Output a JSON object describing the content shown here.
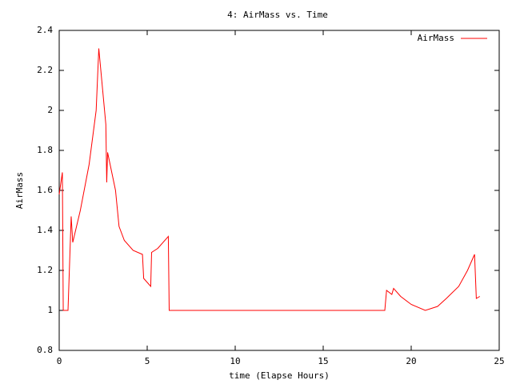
{
  "chart_data": {
    "type": "line",
    "title": "4: AirMass vs. Time",
    "x_label": "time (Elapse Hours)",
    "y_label": "AirMass",
    "x": [
      0,
      0.18,
      0.23,
      0.5,
      0.68,
      0.77,
      1.2,
      1.7,
      2.1,
      2.25,
      2.65,
      2.7,
      2.75,
      3.2,
      3.4,
      3.7,
      4.2,
      4.73,
      4.8,
      5.2,
      5.25,
      5.6,
      6.2,
      6.25,
      18.5,
      18.6,
      18.9,
      19.0,
      19.4,
      20.0,
      20.8,
      21.5,
      22.0,
      22.7,
      23.2,
      23.6,
      23.7,
      23.9
    ],
    "series": [
      {
        "name": "AirMass",
        "color": "#ff0000",
        "values": [
          1.58,
          1.69,
          1.0,
          1.0,
          1.47,
          1.34,
          1.5,
          1.73,
          2.0,
          2.31,
          1.93,
          1.64,
          1.79,
          1.6,
          1.42,
          1.35,
          1.3,
          1.28,
          1.16,
          1.12,
          1.29,
          1.31,
          1.37,
          1.0,
          1.0,
          1.1,
          1.08,
          1.11,
          1.07,
          1.03,
          1.0,
          1.02,
          1.06,
          1.12,
          1.2,
          1.28,
          1.06,
          1.07
        ]
      }
    ],
    "xlim": [
      0,
      25
    ],
    "xticks": [
      0,
      5,
      10,
      15,
      20,
      25
    ],
    "ylim": [
      0.8,
      2.4
    ],
    "yticks": [
      0.8,
      1,
      1.2,
      1.4,
      1.6,
      1.8,
      2,
      2.2,
      2.4
    ],
    "legend": "top-right",
    "grid": false
  }
}
